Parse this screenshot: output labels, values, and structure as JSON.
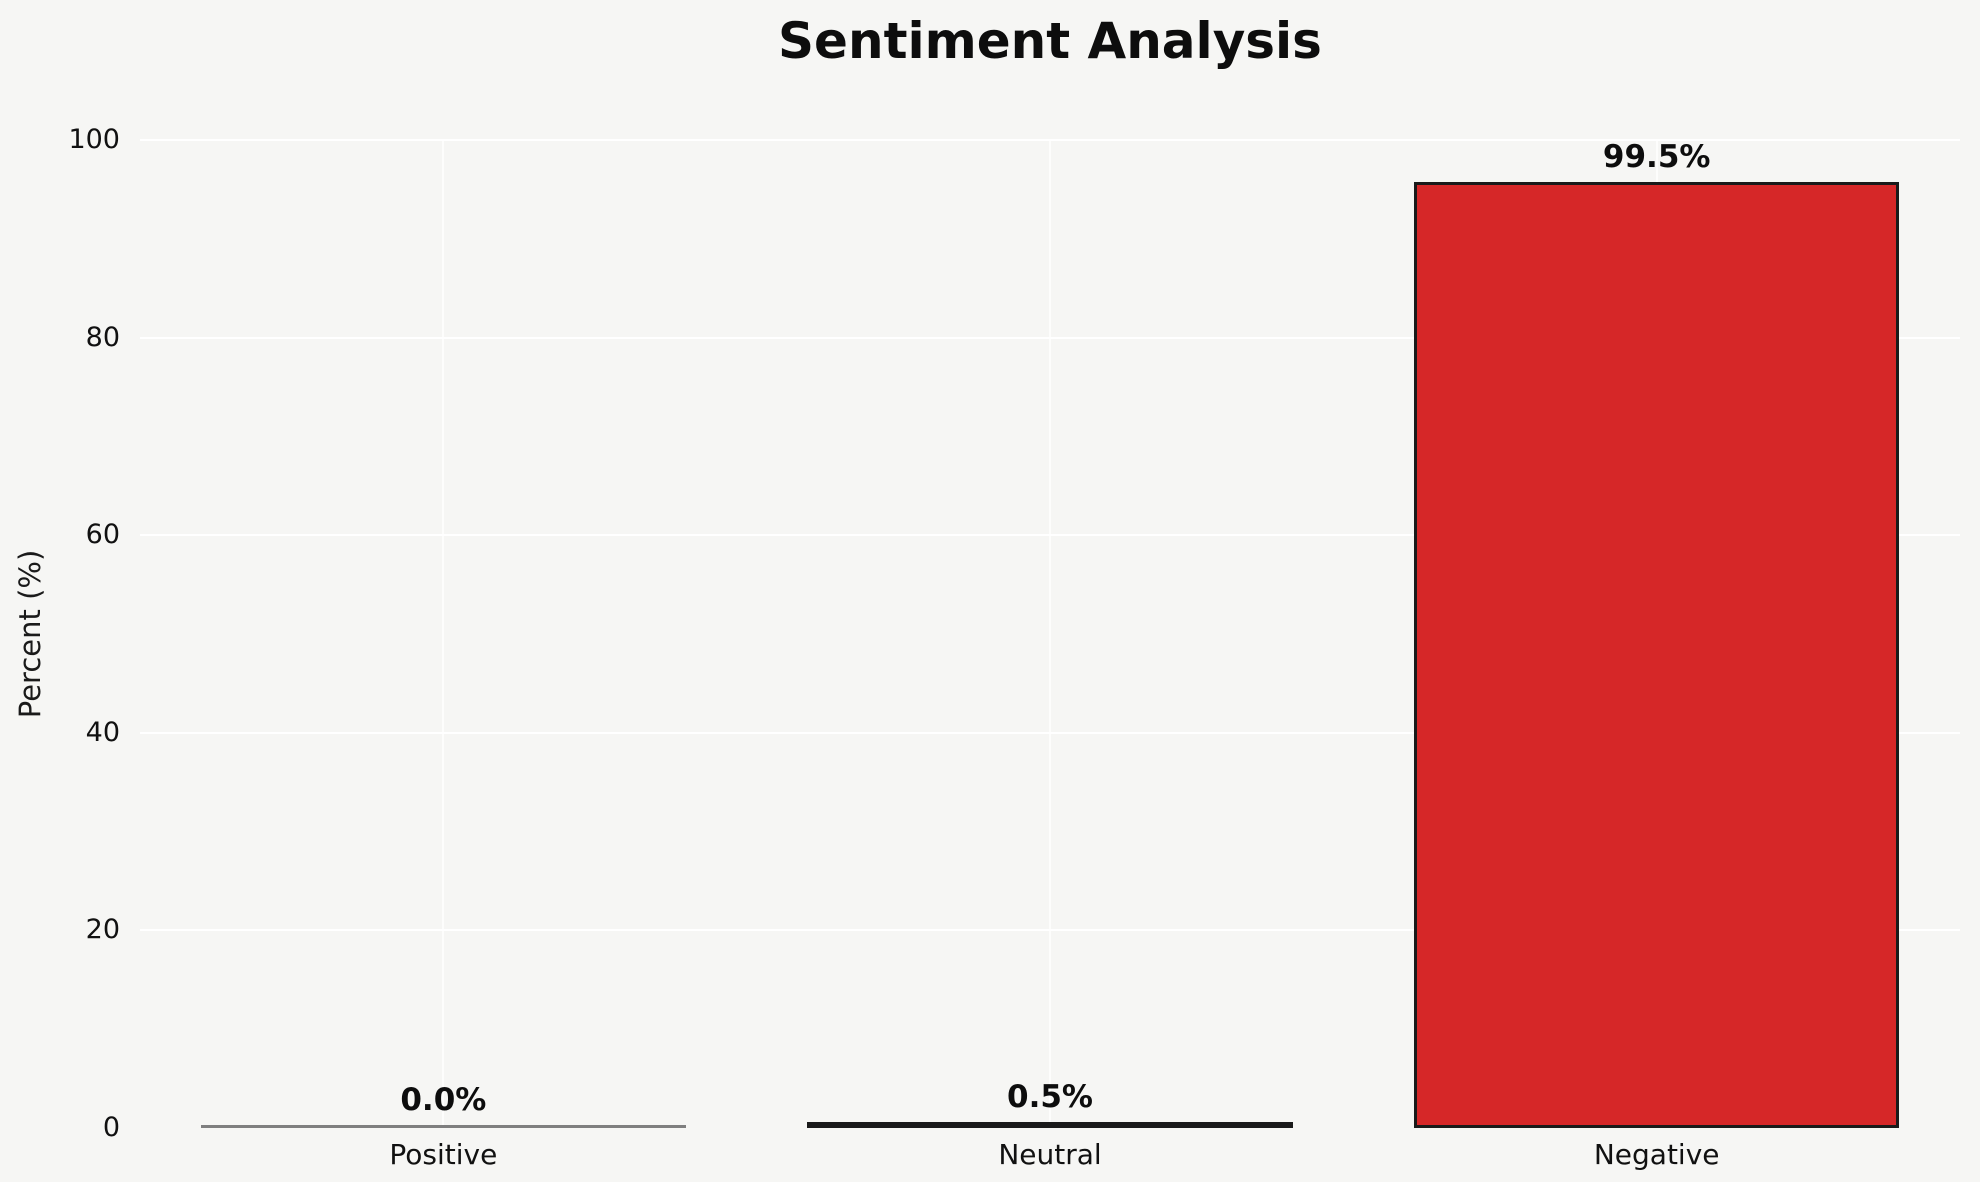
{
  "chart_data": {
    "type": "bar",
    "title": "Sentiment Analysis",
    "xlabel": "",
    "ylabel": "Percent (%)",
    "categories": [
      "Positive",
      "Neutral",
      "Negative"
    ],
    "values": [
      0.0,
      0.5,
      99.5
    ],
    "value_labels": [
      "0.0%",
      "0.5%",
      "99.5%"
    ],
    "bar_colors": [
      "#7f7f7f",
      "#f0e68c",
      "#d62728"
    ],
    "bar_edge_color": "#1a1a1a",
    "ylim": [
      0,
      100
    ],
    "yticks": [
      0,
      20,
      40,
      60,
      80,
      100
    ],
    "grid": "on",
    "gridline_color": "#ffffff",
    "background_color": "#f6f6f4",
    "legend": "none"
  }
}
